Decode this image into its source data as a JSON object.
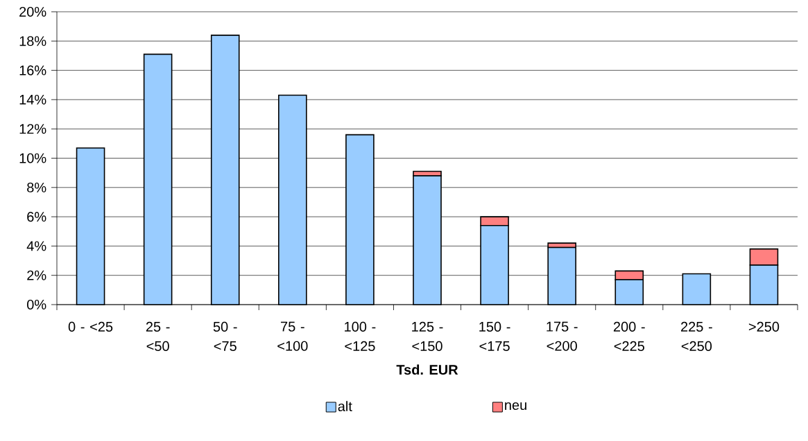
{
  "chart_data": {
    "type": "bar",
    "stacked": true,
    "xlabel": "Tsd. EUR",
    "categories": [
      "0 - <25",
      "25 - <50",
      "50 - <75",
      "75 - <100",
      "100 - <125",
      "125 - <150",
      "150 - <175",
      "175 - <200",
      "200 - <225",
      "225 - <250",
      ">250"
    ],
    "series": [
      {
        "name": "alt",
        "color": "#99ccff",
        "values": [
          10.7,
          17.1,
          18.4,
          14.3,
          11.6,
          8.8,
          5.4,
          3.9,
          1.7,
          2.1,
          2.7
        ]
      },
      {
        "name": "neu",
        "color": "#ff8080",
        "values": [
          0,
          0,
          0,
          0,
          0,
          0.3,
          0.6,
          0.3,
          0.6,
          0,
          1.1
        ]
      }
    ],
    "ylim": [
      0,
      20
    ],
    "yticks": [
      {
        "value": 0,
        "label": "0%"
      },
      {
        "value": 2,
        "label": "2%"
      },
      {
        "value": 4,
        "label": "4%"
      },
      {
        "value": 6,
        "label": "6%"
      },
      {
        "value": 8,
        "label": "8%"
      },
      {
        "value": 10,
        "label": "10%"
      },
      {
        "value": 12,
        "label": "12%"
      },
      {
        "value": 14,
        "label": "14%"
      },
      {
        "value": 16,
        "label": "16%"
      },
      {
        "value": 18,
        "label": "18%"
      },
      {
        "value": 20,
        "label": "20%"
      }
    ],
    "grid": "y",
    "legend": "bottom"
  }
}
